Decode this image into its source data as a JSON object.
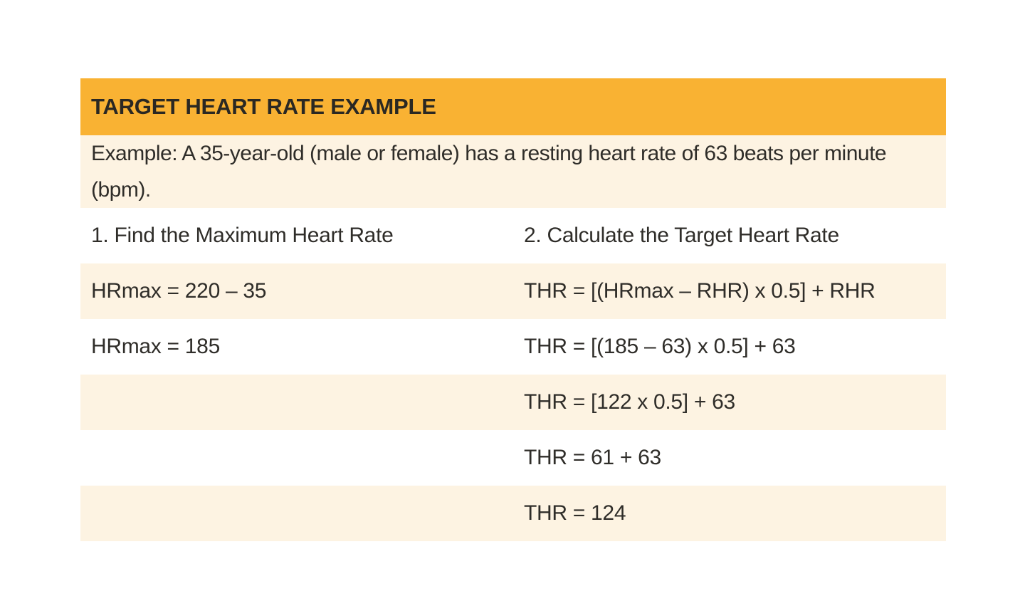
{
  "table": {
    "title": "TARGET HEART RATE EXAMPLE",
    "example_text": "Example: A 35-year-old (male or female) has a resting heart rate of 63 beats per minute (bpm).",
    "columns": [
      {
        "header": "1. Find the Maximum Heart Rate",
        "steps": [
          "HRmax = 220 – 35",
          "HRmax = 185",
          "",
          "",
          ""
        ]
      },
      {
        "header": "2. Calculate the Target Heart Rate",
        "steps": [
          "THR = [(HRmax – RHR) x 0.5] + RHR",
          "THR = [(185 – 63) x 0.5] + 63",
          "THR = [122 x 0.5] + 63",
          "THR = 61 + 63",
          "THR = 124"
        ]
      }
    ],
    "colors": {
      "header_bg": "#F9B233",
      "stripe_bg": "#FDF3E2",
      "plain_bg": "#FFFFFF",
      "title_text": "#2A2823",
      "body_text": "#2F2D29"
    }
  }
}
